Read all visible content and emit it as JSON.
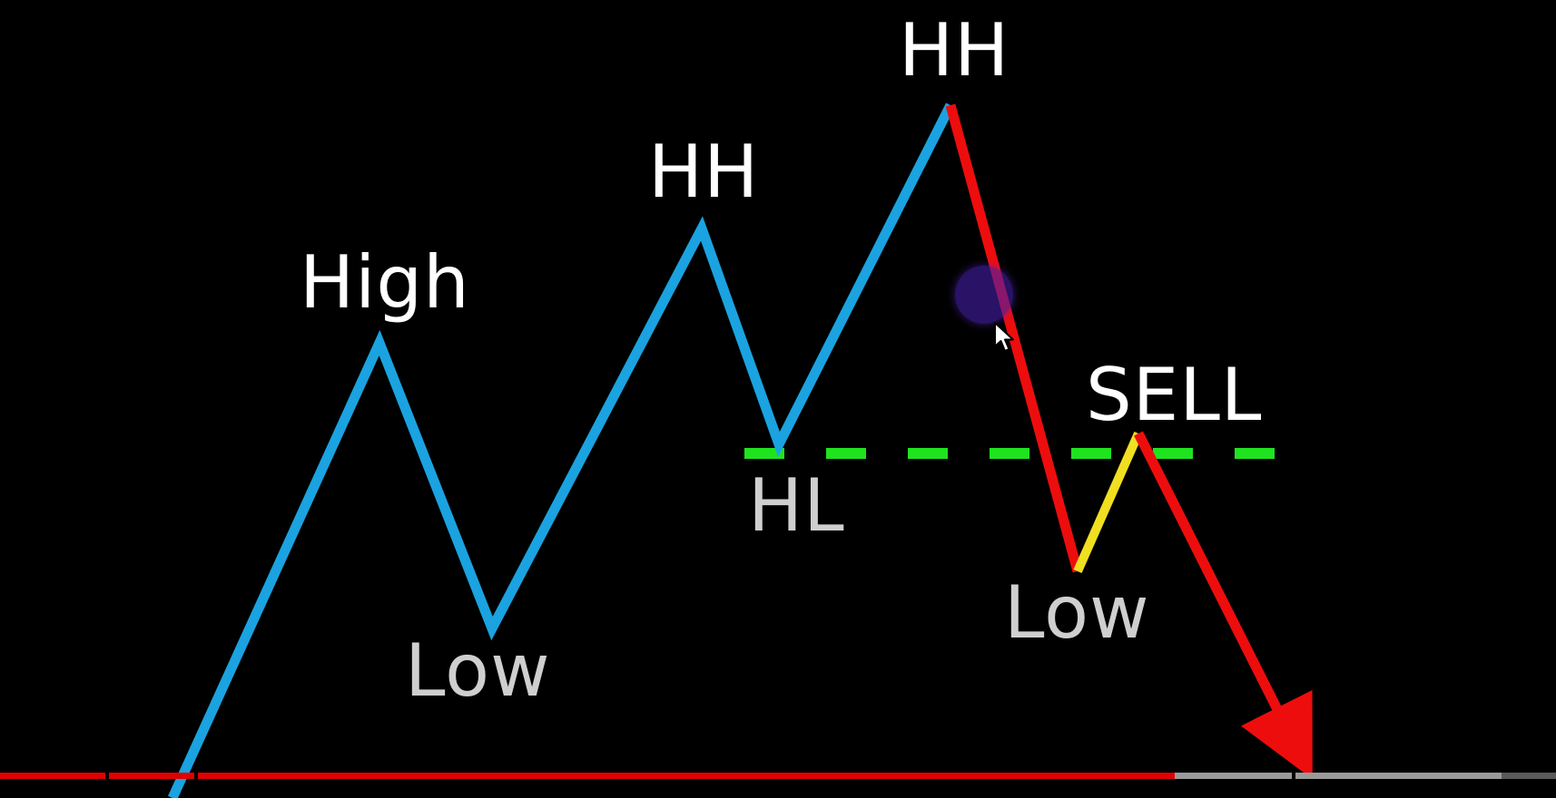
{
  "labels": {
    "high": "High",
    "low_first": "Low",
    "hh_first": "HH",
    "hl": "HL",
    "hh_second": "HH",
    "sell": "SELL",
    "low_second": "Low"
  },
  "colors": {
    "background": "#000000",
    "uptrend": "#1aa3e0",
    "downtrend": "#ee0d0d",
    "pullback": "#f0e020",
    "support_dashed": "#1fe31f",
    "text_white": "#ffffff",
    "text_grey": "#cfcfcf",
    "progress_played": "#e00000"
  },
  "video_progress": {
    "played_fraction": 0.755,
    "buffered_fraction": 0.965
  }
}
